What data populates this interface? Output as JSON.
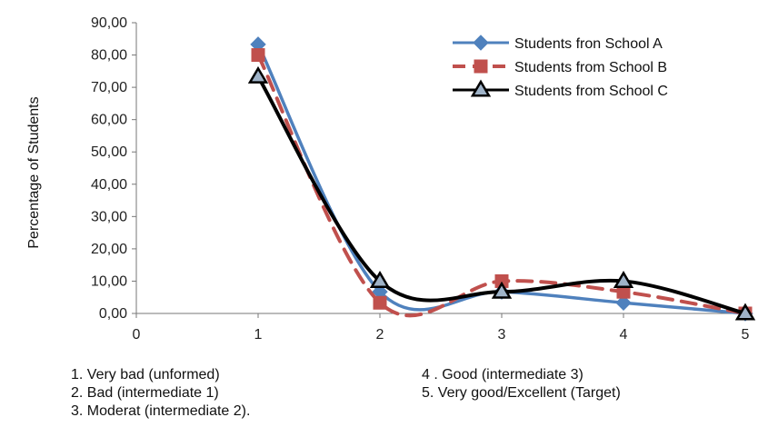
{
  "chart_data": {
    "type": "line",
    "ylabel": "Percentage of Students",
    "xlabel": "",
    "xlim": [
      0,
      5
    ],
    "ylim": [
      0,
      90
    ],
    "x_ticks": [
      "0",
      "1",
      "2",
      "3",
      "4",
      "5"
    ],
    "y_ticks": [
      "0,00",
      "10,00",
      "20,00",
      "30,00",
      "40,00",
      "50,00",
      "60,00",
      "70,00",
      "80,00",
      "90,00"
    ],
    "grid": false,
    "legend_position": "top-right",
    "x": [
      1,
      2,
      3,
      4,
      5
    ],
    "series": [
      {
        "name": "Students fron School A",
        "values": [
          83.3,
          6.7,
          6.7,
          3.3,
          0
        ],
        "color": "#4f81bd",
        "marker": "diamond",
        "dash": "solid"
      },
      {
        "name": "Students from School B",
        "values": [
          80.0,
          3.3,
          10.0,
          6.7,
          0
        ],
        "color": "#c0504d",
        "marker": "square",
        "dash": "dashed"
      },
      {
        "name": "Students from School C",
        "values": [
          73.3,
          10.0,
          6.7,
          10.0,
          0
        ],
        "color": "#000000",
        "marker": "triangle",
        "dash": "solid"
      }
    ],
    "annotations": [
      "1. Very bad (unformed)",
      "2. Bad (intermediate 1)",
      "3. Moderat (intermediate 2).",
      "4 .  Good (intermediate 3)",
      "5.  Very good/Excellent (Target)"
    ]
  }
}
